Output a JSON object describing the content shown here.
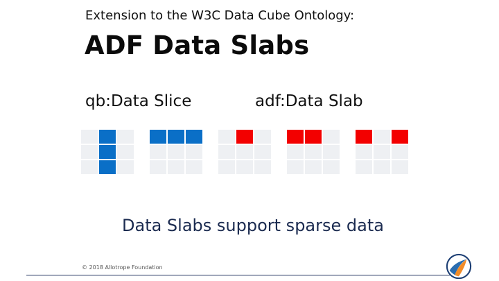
{
  "slide": {
    "subtitle": "Extension to the W3C Data Cube Ontology:",
    "title": "ADF Data Slabs",
    "left_label": "qb:Data Slice",
    "right_label": "adf:Data Slab",
    "tagline": "Data Slabs support sparse data",
    "footer": "© 2018 Allotrope Foundation"
  },
  "grids": [
    {
      "name": "slice-column",
      "color": "#0a6fc7",
      "highlight": [
        [
          0,
          1
        ],
        [
          1,
          1
        ],
        [
          2,
          1
        ]
      ]
    },
    {
      "name": "slice-row",
      "color": "#0a6fc7",
      "highlight": [
        [
          0,
          0
        ],
        [
          0,
          1
        ],
        [
          0,
          2
        ]
      ]
    },
    {
      "name": "slab-single",
      "color": "#f30000",
      "highlight": [
        [
          0,
          1
        ]
      ]
    },
    {
      "name": "slab-pair",
      "color": "#f30000",
      "highlight": [
        [
          0,
          0
        ],
        [
          0,
          1
        ]
      ]
    },
    {
      "name": "slab-sparse",
      "color": "#f30000",
      "highlight": [
        [
          0,
          0
        ],
        [
          0,
          2
        ]
      ]
    }
  ],
  "colors": {
    "blue": "#0a6fc7",
    "red": "#f30000",
    "cell": "#eef0f3",
    "footer_line": "#1d2f5c"
  },
  "logo_icon": "allotrope-logo-icon"
}
